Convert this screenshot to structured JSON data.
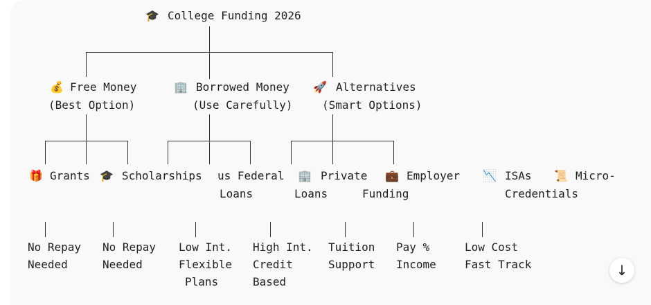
{
  "root": {
    "icon": "graduation-cap-icon",
    "label": "College Funding 2026"
  },
  "branches": [
    {
      "icon": "money-bag-icon",
      "label": "Free Money",
      "sub": "(Best Option)"
    },
    {
      "icon": "office-building-icon",
      "label": "Borrowed Money",
      "sub": "(Use Carefully)"
    },
    {
      "icon": "rocket-icon",
      "label": "Alternatives",
      "sub": "(Smart Options)"
    }
  ],
  "leaves": [
    {
      "icon": "gift-icon",
      "label": "Grants"
    },
    {
      "icon": "graduation-cap-icon",
      "label": "Scholarships"
    },
    {
      "label": "us Federal",
      "label2": "Loans"
    },
    {
      "icon": "office-building-icon",
      "label": "Private",
      "label2": "Loans"
    },
    {
      "icon": "briefcase-icon",
      "label": "Employer",
      "label2": "Funding"
    },
    {
      "icon": "chart-decreasing-icon",
      "label": "ISAs"
    },
    {
      "icon": "scroll-icon",
      "label": "Micro-",
      "label2": "Credentials"
    }
  ],
  "notes": [
    [
      "No Repay",
      "Needed"
    ],
    [
      "No Repay",
      "Needed"
    ],
    [
      "Low Int.",
      "Flexible",
      "Plans"
    ],
    [
      "High Int.",
      "Credit",
      "Based"
    ],
    [
      "Tuition",
      "Support"
    ],
    [
      "Pay %",
      "Income"
    ],
    [
      "Low Cost",
      "Fast Track"
    ]
  ],
  "scroll_down": "↓"
}
